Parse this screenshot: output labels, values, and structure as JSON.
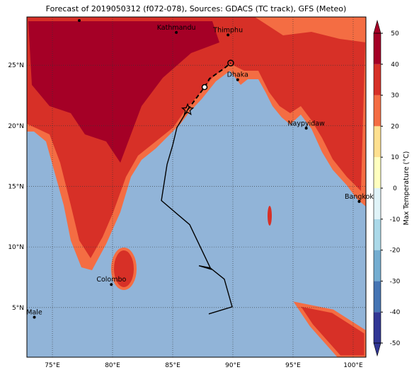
{
  "map": {
    "title": "Forecast of 2019050312 (f072-078), Sources: GDACS (TC track), GFS (Meteo)",
    "xlim": [
      72.88,
      101.06
    ],
    "ylim": [
      0.9,
      28.98
    ],
    "lon_ticks": [
      {
        "value": 75,
        "label": "75°E"
      },
      {
        "value": 80,
        "label": "80°E"
      },
      {
        "value": 85,
        "label": "85°E"
      },
      {
        "value": 90,
        "label": "90°E"
      },
      {
        "value": 95,
        "label": "95°E"
      },
      {
        "value": 100,
        "label": "100°E"
      }
    ],
    "lat_ticks": [
      {
        "value": 5,
        "label": "5°N"
      },
      {
        "value": 10,
        "label": "10°N"
      },
      {
        "value": 15,
        "label": "15°N"
      },
      {
        "value": 20,
        "label": "20°N"
      },
      {
        "value": 25,
        "label": "25°N"
      }
    ],
    "cities": [
      {
        "name": "Kathmandu",
        "lon": 85.3,
        "lat": 27.7
      },
      {
        "name": "Thimphu",
        "lon": 89.6,
        "lat": 27.5
      },
      {
        "name": "Dhaka",
        "lon": 90.4,
        "lat": 23.8
      },
      {
        "name": "Naypyidaw",
        "lon": 96.1,
        "lat": 19.8
      },
      {
        "name": "Bangkok",
        "lon": 100.5,
        "lat": 13.75
      },
      {
        "name": "Colombo",
        "lon": 79.9,
        "lat": 6.9
      },
      {
        "name": "Male",
        "lon": 73.5,
        "lat": 4.2
      }
    ],
    "track_observed": {
      "lon": [
        88.0,
        89.94,
        89.29,
        88.12,
        87.18,
        88.18,
        86.41,
        84.06,
        84.53,
        85.0,
        85.35,
        86.06,
        86.24
      ],
      "lat": [
        4.47,
        5.06,
        7.34,
        8.27,
        8.45,
        8.16,
        11.84,
        13.83,
        16.81,
        18.4,
        19.85,
        21.02,
        21.32
      ]
    },
    "track_forecast": {
      "lon": [
        86.24,
        87.65,
        88.06,
        89.24,
        89.82
      ],
      "lat": [
        21.32,
        23.19,
        23.89,
        24.71,
        25.18
      ]
    },
    "colorbar": {
      "label": "Max Temperature (°C)",
      "lim": [
        -50,
        50
      ],
      "ticks": [
        -50,
        -40,
        -30,
        -20,
        -10,
        0,
        10,
        20,
        30,
        40,
        50
      ],
      "colors": [
        "#313695",
        "#4575b4",
        "#74add1",
        "#abd9e9",
        "#e0f3f8",
        "#ffffbf",
        "#fee090",
        "#f46d43",
        "#d73027",
        "#a50026"
      ]
    }
  }
}
